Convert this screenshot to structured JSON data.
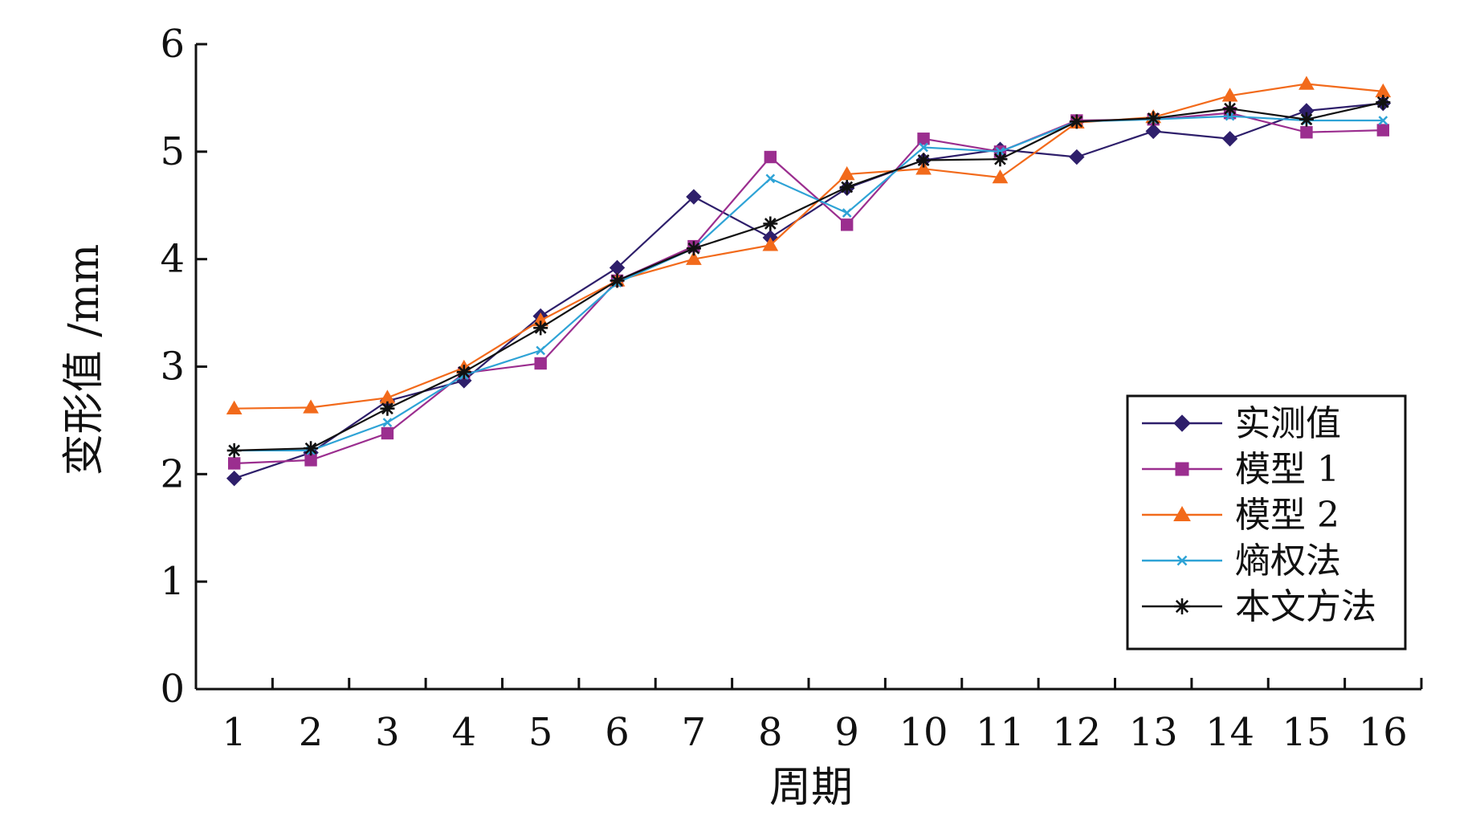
{
  "chart_data": {
    "type": "line",
    "title": "",
    "xlabel": "周期",
    "ylabel": "变形值 /mm",
    "ylim": [
      0,
      6
    ],
    "yticks": [
      0,
      1,
      2,
      3,
      4,
      5,
      6
    ],
    "x": [
      1,
      2,
      3,
      4,
      5,
      6,
      7,
      8,
      9,
      10,
      11,
      12,
      13,
      14,
      15,
      16
    ],
    "grid": false,
    "legend_position": "bottom-right",
    "series": [
      {
        "name": "实测值",
        "color": "#2e1f6b",
        "marker": "diamond",
        "values": [
          1.96,
          2.2,
          2.68,
          2.87,
          3.47,
          3.92,
          4.58,
          4.2,
          4.66,
          4.92,
          5.02,
          4.95,
          5.19,
          5.12,
          5.38,
          5.45
        ]
      },
      {
        "name": "模型 1",
        "color": "#9b2e8f",
        "marker": "square",
        "values": [
          2.1,
          2.13,
          2.38,
          2.94,
          3.03,
          3.8,
          4.12,
          4.95,
          4.32,
          5.12,
          5.0,
          5.29,
          5.3,
          5.36,
          5.18,
          5.2
        ]
      },
      {
        "name": "模型 2",
        "color": "#f26a1b",
        "marker": "triangle",
        "values": [
          2.61,
          2.62,
          2.71,
          2.99,
          3.43,
          3.8,
          4.0,
          4.13,
          4.79,
          4.84,
          4.76,
          5.27,
          5.32,
          5.52,
          5.63,
          5.56
        ]
      },
      {
        "name": "熵权法",
        "color": "#2ea3d6",
        "marker": "x",
        "values": [
          2.22,
          2.22,
          2.48,
          2.92,
          3.15,
          3.78,
          4.1,
          4.75,
          4.43,
          5.04,
          5.0,
          5.28,
          5.3,
          5.33,
          5.29,
          5.29
        ]
      },
      {
        "name": "本文方法",
        "color": "#111111",
        "marker": "star",
        "values": [
          2.22,
          2.24,
          2.61,
          2.95,
          3.36,
          3.8,
          4.1,
          4.33,
          4.67,
          4.92,
          4.93,
          5.28,
          5.31,
          5.4,
          5.3,
          5.46
        ]
      }
    ]
  }
}
